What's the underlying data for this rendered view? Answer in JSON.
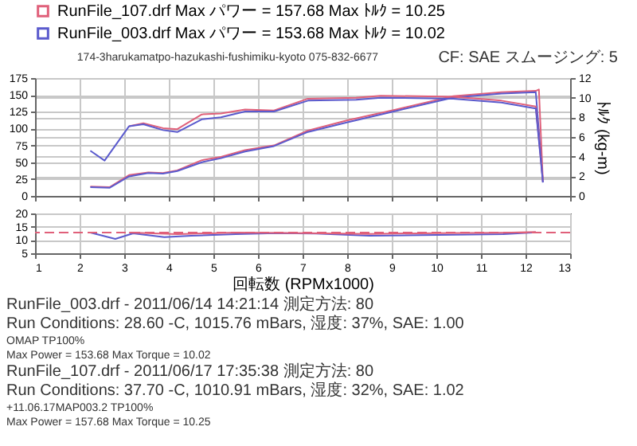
{
  "chart_data": [
    {
      "type": "line",
      "subtitle": "174-3harukamatpo-hazukashi-fushimiku-kyoto  075-832-6677",
      "annotations": [
        "CF: SAE  スムージング: 5"
      ],
      "xlim": [
        1,
        13
      ],
      "xticks": [
        1,
        2,
        3,
        4,
        5,
        6,
        7,
        8,
        9,
        10,
        11,
        12,
        13
      ],
      "ylim": [
        0,
        175
      ],
      "yticks": [
        0,
        25,
        50,
        75,
        100,
        125,
        150,
        175
      ],
      "y2lim": [
        0,
        12
      ],
      "y2ticks": [
        0,
        2,
        4,
        6,
        8,
        10,
        12
      ],
      "y2label": "ﾄﾙｸ (kg-m)",
      "tick_labels": "y",
      "grid": true,
      "legend": "top left",
      "series": [
        {
          "name": "RunFile_107.drf  Max パワー = 157.68   Max ﾄﾙｸ = 10.25",
          "color": "#e0607a",
          "x": [
            2.24,
            2.67,
            3.11,
            3.54,
            3.87,
            4.19,
            4.74,
            5.17,
            5.71,
            6.36,
            7.12,
            7.99,
            9.08,
            10.38,
            11.46,
            12.23,
            12.3,
            12.39
          ],
          "values": [
            14,
            13,
            31,
            35,
            34,
            38,
            53,
            58,
            68,
            75,
            97,
            112,
            128,
            148,
            154,
            156,
            158,
            21
          ]
        },
        {
          "name": "RunFile_003.drf  Max パワー = 153.68   Max ﾄﾙｸ = 10.02",
          "color": "#5a5acd",
          "x": [
            2.24,
            2.67,
            3.11,
            3.54,
            3.87,
            4.19,
            4.74,
            5.17,
            5.71,
            6.36,
            7.12,
            7.99,
            9.08,
            10.38,
            11.46,
            12.23,
            12.39
          ],
          "values": [
            13,
            12,
            29,
            34,
            33,
            37,
            50,
            56,
            66,
            74,
            95,
            109,
            126,
            146,
            152,
            154,
            20
          ]
        },
        {
          "axis": "y2",
          "color": "#e0607a",
          "x": [
            3.11,
            3.43,
            3.87,
            4.19,
            4.74,
            5.17,
            5.71,
            6.36,
            7.12,
            8.2,
            8.75,
            10.38,
            11.46,
            12.23,
            12.39
          ],
          "values": [
            7.1,
            7.4,
            6.9,
            6.8,
            8.3,
            8.4,
            8.8,
            8.7,
            9.9,
            10,
            10.2,
            10.1,
            9.7,
            9.1,
            1.5
          ]
        },
        {
          "axis": "y2",
          "color": "#5a5acd",
          "x": [
            2.24,
            2.56,
            3.11,
            3.43,
            3.87,
            4.19,
            4.74,
            5.17,
            5.71,
            6.36,
            7.12,
            8.2,
            8.75,
            10.38,
            11.46,
            12.23,
            12.39
          ],
          "values": [
            4.6,
            3.6,
            7.1,
            7.3,
            6.7,
            6.5,
            7.8,
            8.0,
            8.6,
            8.6,
            9.7,
            9.8,
            10.0,
            9.9,
            9.5,
            8.9,
            1.4
          ]
        }
      ]
    },
    {
      "type": "line",
      "xlabel": "回転数 (RPMx1000)",
      "xlim": [
        1,
        13
      ],
      "xticks": [
        1,
        2,
        3,
        4,
        5,
        6,
        7,
        8,
        9,
        10,
        11,
        12,
        13
      ],
      "ylim": [
        5,
        20
      ],
      "yticks": [
        5,
        10,
        15,
        20
      ],
      "grid": true,
      "ref_lines": [
        {
          "axis": "y",
          "value": 12.8,
          "color": "#e0607a",
          "line_style": "dashed"
        }
      ],
      "series": [
        {
          "color": "#5a5acd",
          "x": [
            2.24,
            2.8,
            3.2,
            3.9,
            4.5,
            5.5,
            6.4,
            7.3,
            8.5,
            10.4,
            11.5,
            12.23
          ],
          "values": [
            12.8,
            10.4,
            12.5,
            11.1,
            11.6,
            12.2,
            12.6,
            12.4,
            11.6,
            12,
            12.2,
            12.9
          ]
        },
        {
          "color": "#e0607a",
          "x": [
            3.11,
            4.19,
            5.5,
            7.12,
            8.5,
            10,
            11.5,
            12.23
          ],
          "values": [
            12.8,
            12.2,
            12.8,
            12.6,
            12.3,
            12.6,
            12.7,
            13
          ]
        }
      ],
      "annotations": [
        "RunFile_003.drf - 2011/06/14 14:21:14  測定方法: 80",
        "Run Conditions: 28.60 -C, 1015.76 mBars,  湿度: 37%, SAE: 1.00",
        "OMAP  TP100%",
        "Max Power = 153.68  Max Torque = 10.02",
        "RunFile_107.drf - 2011/06/17 17:35:38  測定方法: 80",
        "Run Conditions: 37.70 -C, 1010.91 mBars,  湿度: 32%, SAE: 1.02",
        "+11.06.17MAP003.2 TP100%",
        "Max Power = 157.68  Max Torque = 10.25"
      ]
    }
  ]
}
